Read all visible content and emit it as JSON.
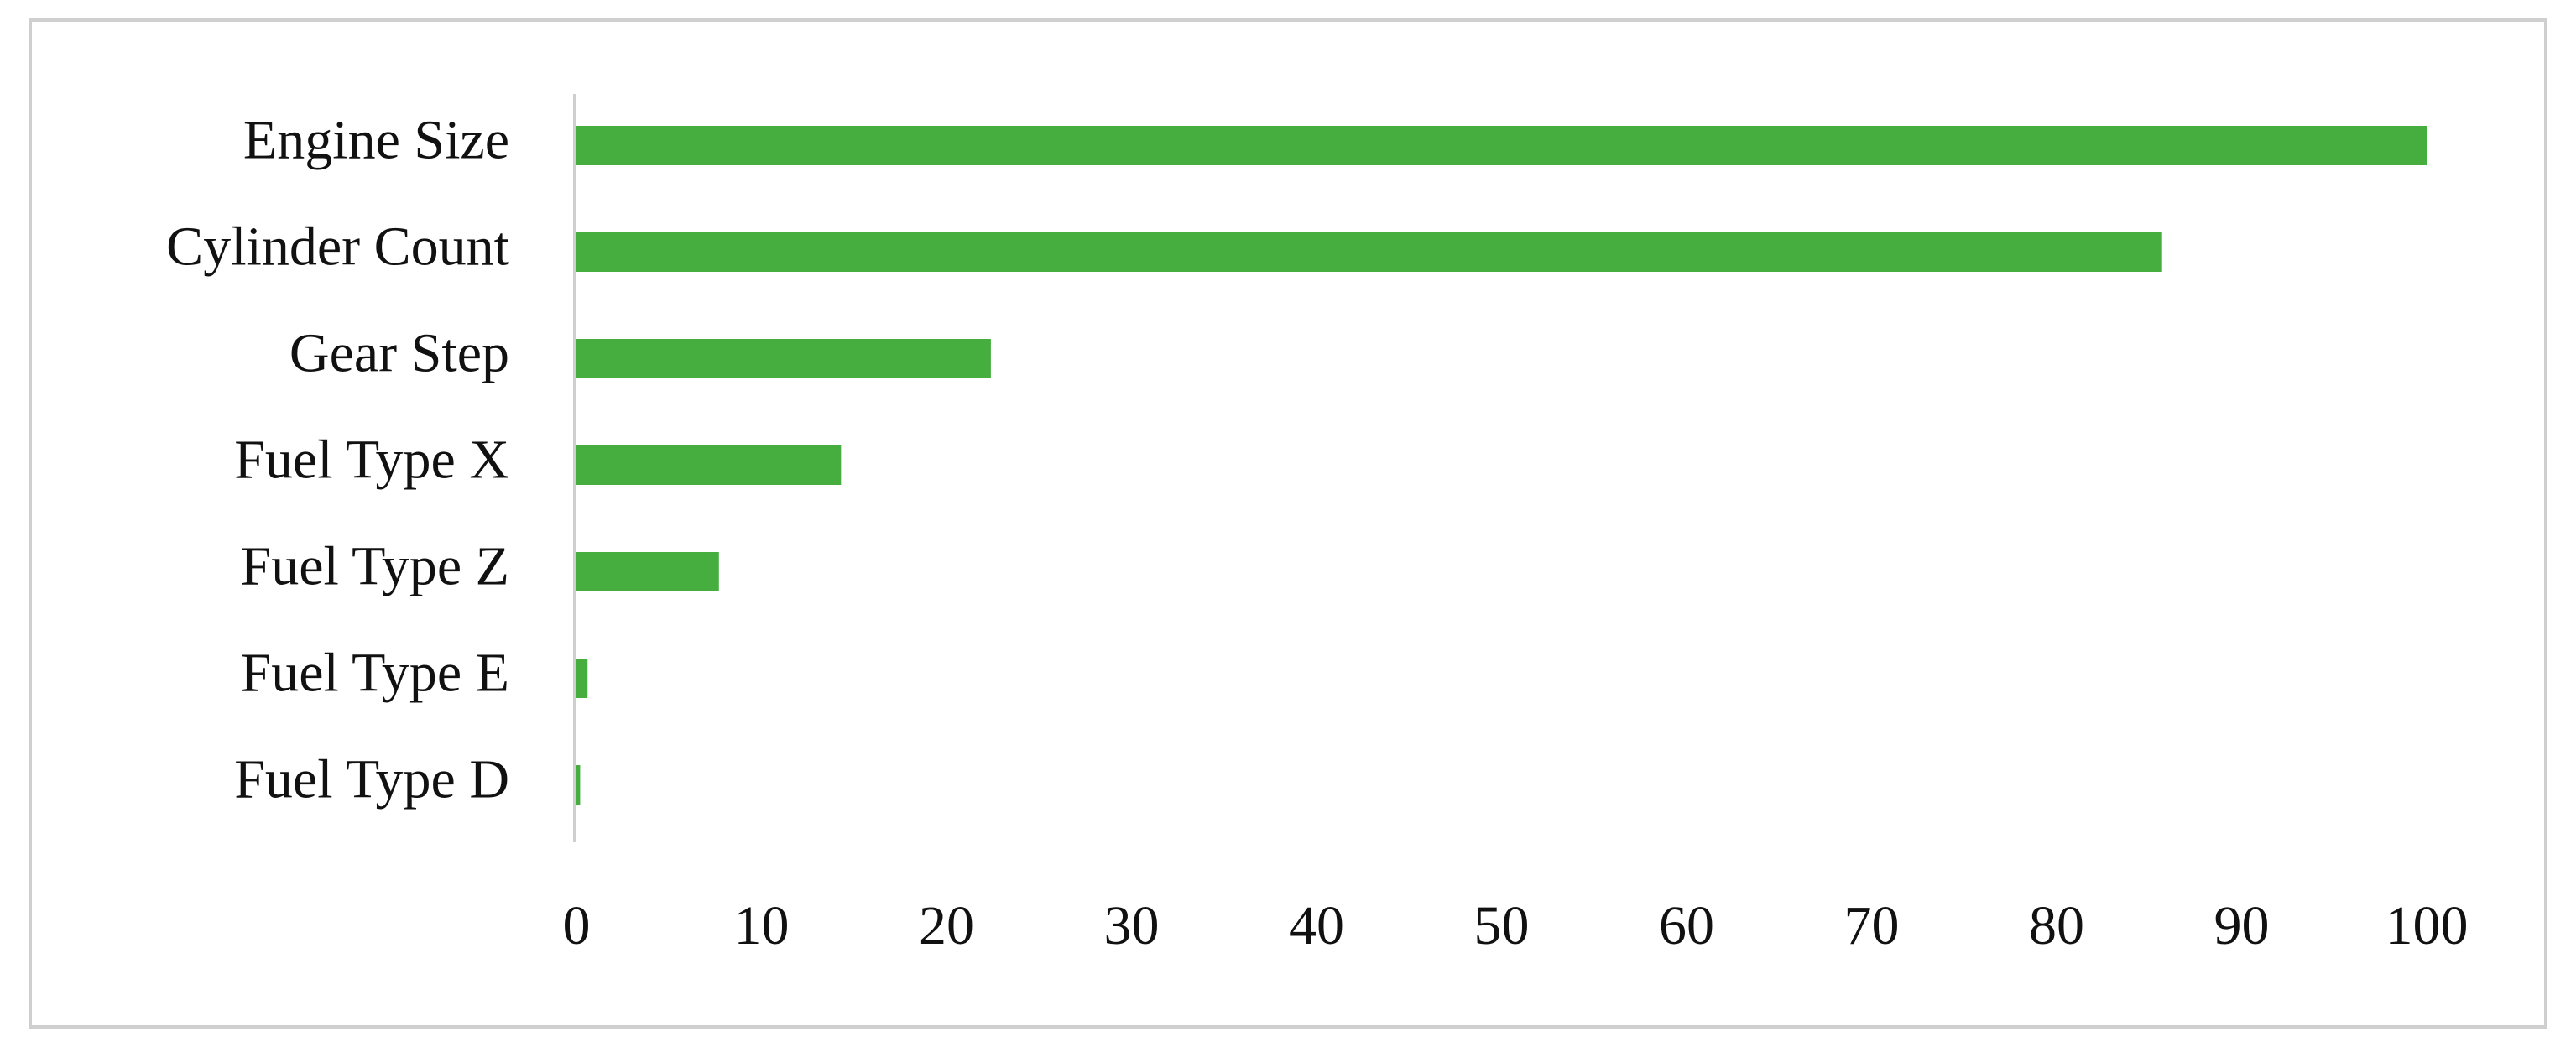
{
  "chart_data": {
    "type": "barh",
    "categories": [
      "Engine Size",
      "Cylinder Count",
      "Gear Step",
      "Fuel Type X",
      "Fuel Type Z",
      "Fuel Type E",
      "Fuel Type D"
    ],
    "values": [
      100,
      85.7,
      22.4,
      14.3,
      7.7,
      0.6,
      0.2
    ],
    "color": "#45ae3e",
    "xlim": [
      0,
      100
    ],
    "xticks": [
      0,
      10,
      20,
      30,
      40,
      50,
      60,
      70,
      80,
      90,
      100
    ],
    "grid": false
  }
}
